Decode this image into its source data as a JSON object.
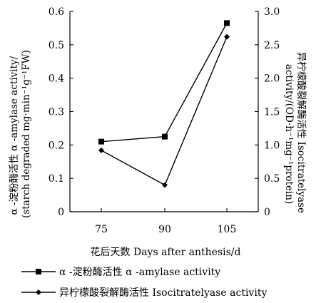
{
  "chart_data": {
    "type": "line",
    "categories": [
      "75",
      "90",
      "105"
    ],
    "xlabel": "花后天数 Days after anthesis/d",
    "left_axis": {
      "label_line1": "α -淀粉酶活性 α -amylase activity/",
      "label_line2": "(starch degraded mg·min⁻¹g⁻¹FW)",
      "ylim": [
        0,
        0.6
      ],
      "ticks": [
        0,
        0.1,
        0.2,
        0.3,
        0.4,
        0.5,
        0.6
      ],
      "tick_labels": [
        "0",
        "0.1",
        "0.2",
        "0.3",
        "0.4",
        "0.5",
        "0.6"
      ]
    },
    "right_axis": {
      "label_line1": "异柠檬酸裂解酶活性 Isocitratelyase",
      "label_line2": "activity/(OD·h⁻¹mg⁻¹protein)",
      "ylim": [
        0,
        3.0
      ],
      "ticks": [
        0,
        0.5,
        1.0,
        1.5,
        2.0,
        2.5,
        3.0
      ],
      "tick_labels": [
        "0",
        "0.5",
        "1.0",
        "1.5",
        "2.0",
        "2.5",
        "3.0"
      ]
    },
    "series": [
      {
        "name": "α -淀粉酶活性 α -amylase activity",
        "axis": "left",
        "marker": "square",
        "values": [
          0.21,
          0.225,
          0.565
        ]
      },
      {
        "name": "异柠檬酸裂解酶活性 Isocitratelyase activity",
        "axis": "right",
        "marker": "diamond",
        "values": [
          0.92,
          0.4,
          2.62
        ]
      }
    ],
    "legend_position": "bottom",
    "grid": false,
    "colors": {
      "line": "#000000",
      "background": "#ffffff"
    }
  }
}
